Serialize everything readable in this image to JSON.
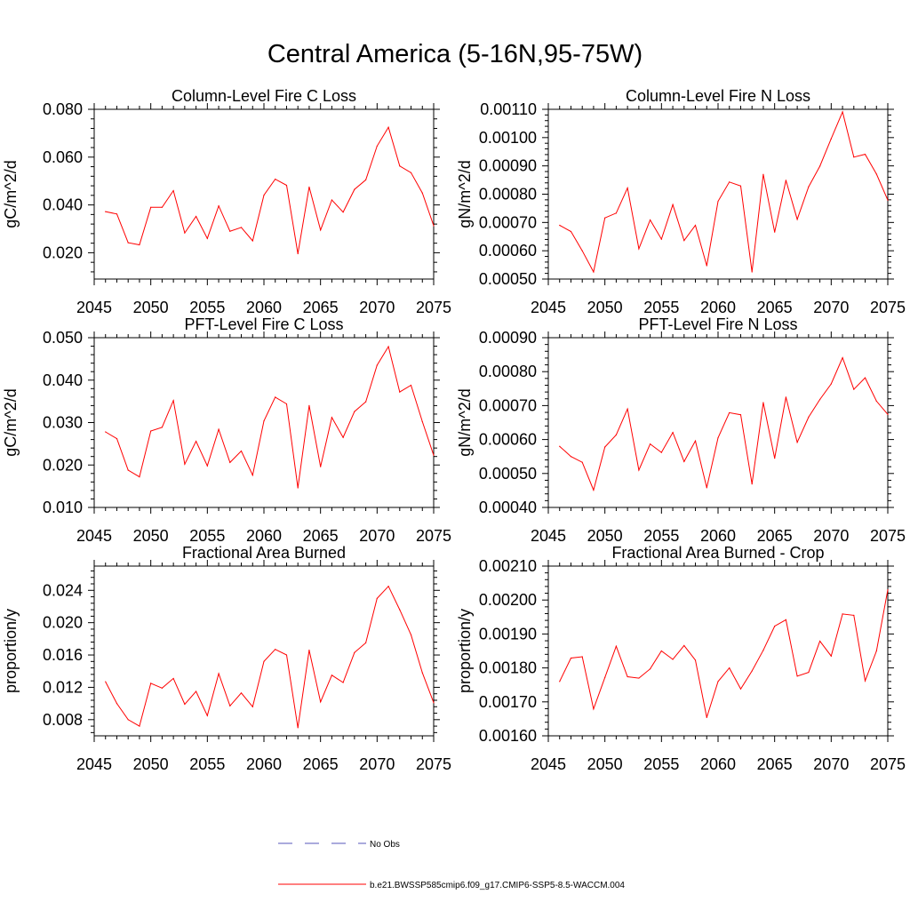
{
  "figure_title": "Central America (5-16N,95-75W)",
  "legend": {
    "obs_label": "No Obs",
    "model_label": "b.e21.BWSSP585cmip6.f09_g17.CMIP6-SSP5-8.5-WACCM.004",
    "obs_color": "#5555bb",
    "model_color": "#ff0000"
  },
  "chart_data": [
    {
      "type": "line",
      "title": "Column-Level Fire C Loss",
      "xlabel": "",
      "ylabel": "gC/m^2/d",
      "xlim": [
        2045,
        2075
      ],
      "ylim": [
        0.009,
        0.08
      ],
      "yticks": [
        0.02,
        0.04,
        0.06,
        0.08
      ],
      "yticklabels": [
        "0.020",
        "0.040",
        "0.060",
        "0.080"
      ],
      "xticks": [
        2045,
        2050,
        2055,
        2060,
        2065,
        2070,
        2075
      ],
      "xticklabels": [
        "2045",
        "2050",
        "2055",
        "2060",
        "2065",
        "2070",
        "2075"
      ],
      "series": [
        {
          "name": "b.e21.BWSSP585cmip6.f09_g17.CMIP6-SSP5-8.5-WACCM.004",
          "color": "#ff0000",
          "x": [
            2046,
            2047,
            2048,
            2049,
            2050,
            2051,
            2052,
            2053,
            2054,
            2055,
            2056,
            2057,
            2058,
            2059,
            2060,
            2061,
            2062,
            2063,
            2064,
            2065,
            2066,
            2067,
            2068,
            2069,
            2070,
            2071,
            2072,
            2073,
            2074,
            2075
          ],
          "values": [
            0.0372,
            0.0362,
            0.0242,
            0.0233,
            0.039,
            0.039,
            0.046,
            0.0283,
            0.0352,
            0.026,
            0.0396,
            0.029,
            0.0306,
            0.025,
            0.0441,
            0.0508,
            0.0482,
            0.0196,
            0.0475,
            0.0295,
            0.0421,
            0.037,
            0.0465,
            0.0505,
            0.0646,
            0.0725,
            0.0563,
            0.0535,
            0.045,
            0.0313
          ]
        }
      ]
    },
    {
      "type": "line",
      "title": "Column-Level Fire N Loss",
      "xlabel": "",
      "ylabel": "gN/m^2/d",
      "xlim": [
        2045,
        2075
      ],
      "ylim": [
        0.0005,
        0.0011
      ],
      "yticks": [
        0.0005,
        0.0006,
        0.0007,
        0.0008,
        0.0009,
        0.001,
        0.0011
      ],
      "yticklabels": [
        "0.00050",
        "0.00060",
        "0.00070",
        "0.00080",
        "0.00090",
        "0.00100",
        "0.00110"
      ],
      "xticks": [
        2045,
        2050,
        2055,
        2060,
        2065,
        2070,
        2075
      ],
      "xticklabels": [
        "2045",
        "2050",
        "2055",
        "2060",
        "2065",
        "2070",
        "2075"
      ],
      "series": [
        {
          "name": "b.e21.BWSSP585cmip6.f09_g17.CMIP6-SSP5-8.5-WACCM.004",
          "color": "#ff0000",
          "x": [
            2046,
            2047,
            2048,
            2049,
            2050,
            2051,
            2052,
            2053,
            2054,
            2055,
            2056,
            2057,
            2058,
            2059,
            2060,
            2061,
            2062,
            2063,
            2064,
            2065,
            2066,
            2067,
            2068,
            2069,
            2070,
            2071,
            2072,
            2073,
            2074,
            2075
          ],
          "values": [
            0.00069,
            0.000668,
            0.0006,
            0.000525,
            0.000716,
            0.000733,
            0.000822,
            0.000607,
            0.000709,
            0.000641,
            0.000763,
            0.000636,
            0.00069,
            0.000547,
            0.000775,
            0.000843,
            0.000829,
            0.000525,
            0.00087,
            0.000666,
            0.000849,
            0.000711,
            0.000826,
            0.000899,
            0.000996,
            0.001091,
            0.000931,
            0.000941,
            0.000871,
            0.000779
          ]
        }
      ]
    },
    {
      "type": "line",
      "title": "PFT-Level Fire C Loss",
      "xlabel": "",
      "ylabel": "gC/m^2/d",
      "xlim": [
        2045,
        2075
      ],
      "ylim": [
        0.01,
        0.05
      ],
      "yticks": [
        0.01,
        0.02,
        0.03,
        0.04,
        0.05
      ],
      "yticklabels": [
        "0.010",
        "0.020",
        "0.030",
        "0.040",
        "0.050"
      ],
      "xticks": [
        2045,
        2050,
        2055,
        2060,
        2065,
        2070,
        2075
      ],
      "xticklabels": [
        "2045",
        "2050",
        "2055",
        "2060",
        "2065",
        "2070",
        "2075"
      ],
      "series": [
        {
          "name": "b.e21.BWSSP585cmip6.f09_g17.CMIP6-SSP5-8.5-WACCM.004",
          "color": "#ff0000",
          "x": [
            2046,
            2047,
            2048,
            2049,
            2050,
            2051,
            2052,
            2053,
            2054,
            2055,
            2056,
            2057,
            2058,
            2059,
            2060,
            2061,
            2062,
            2063,
            2064,
            2065,
            2066,
            2067,
            2068,
            2069,
            2070,
            2071,
            2072,
            2073,
            2074,
            2075
          ],
          "values": [
            0.0278,
            0.0262,
            0.0188,
            0.0172,
            0.028,
            0.0289,
            0.0352,
            0.0202,
            0.0256,
            0.0198,
            0.0284,
            0.0206,
            0.0233,
            0.0176,
            0.0304,
            0.036,
            0.0344,
            0.0146,
            0.034,
            0.0196,
            0.0312,
            0.0265,
            0.0326,
            0.0349,
            0.0435,
            0.0479,
            0.0372,
            0.0388,
            0.0302,
            0.0223
          ]
        }
      ]
    },
    {
      "type": "line",
      "title": "PFT-Level Fire N Loss",
      "xlabel": "",
      "ylabel": "gN/m^2/d",
      "xlim": [
        2045,
        2075
      ],
      "ylim": [
        0.0004,
        0.0009
      ],
      "yticks": [
        0.0004,
        0.0005,
        0.0006,
        0.0007,
        0.0008,
        0.0009
      ],
      "yticklabels": [
        "0.00040",
        "0.00050",
        "0.00060",
        "0.00070",
        "0.00080",
        "0.00090"
      ],
      "xticks": [
        2045,
        2050,
        2055,
        2060,
        2065,
        2070,
        2075
      ],
      "xticklabels": [
        "2045",
        "2050",
        "2055",
        "2060",
        "2065",
        "2070",
        "2075"
      ],
      "series": [
        {
          "name": "b.e21.BWSSP585cmip6.f09_g17.CMIP6-SSP5-8.5-WACCM.004",
          "color": "#ff0000",
          "x": [
            2046,
            2047,
            2048,
            2049,
            2050,
            2051,
            2052,
            2053,
            2054,
            2055,
            2056,
            2057,
            2058,
            2059,
            2060,
            2061,
            2062,
            2063,
            2064,
            2065,
            2066,
            2067,
            2068,
            2069,
            2070,
            2071,
            2072,
            2073,
            2074,
            2075
          ],
          "values": [
            0.00058,
            0.00055,
            0.000533,
            0.000451,
            0.000578,
            0.000614,
            0.00069,
            0.00051,
            0.000587,
            0.000562,
            0.000621,
            0.000535,
            0.000596,
            0.000458,
            0.000605,
            0.000679,
            0.000673,
            0.000469,
            0.000709,
            0.000545,
            0.000725,
            0.000592,
            0.000666,
            0.000718,
            0.000764,
            0.000841,
            0.000748,
            0.000782,
            0.000713,
            0.000674
          ]
        }
      ]
    },
    {
      "type": "line",
      "title": "Fractional Area Burned",
      "xlabel": "",
      "ylabel": "proportion/y",
      "xlim": [
        2045,
        2075
      ],
      "ylim": [
        0.006,
        0.027
      ],
      "yticks": [
        0.008,
        0.012,
        0.016,
        0.02,
        0.024
      ],
      "yticklabels": [
        "0.008",
        "0.012",
        "0.016",
        "0.020",
        "0.024"
      ],
      "xticks": [
        2045,
        2050,
        2055,
        2060,
        2065,
        2070,
        2075
      ],
      "xticklabels": [
        "2045",
        "2050",
        "2055",
        "2060",
        "2065",
        "2070",
        "2075"
      ],
      "series": [
        {
          "name": "b.e21.BWSSP585cmip6.f09_g17.CMIP6-SSP5-8.5-WACCM.004",
          "color": "#ff0000",
          "x": [
            2046,
            2047,
            2048,
            2049,
            2050,
            2051,
            2052,
            2053,
            2054,
            2055,
            2056,
            2057,
            2058,
            2059,
            2060,
            2061,
            2062,
            2063,
            2064,
            2065,
            2066,
            2067,
            2068,
            2069,
            2070,
            2071,
            2072,
            2073,
            2074,
            2075
          ],
          "values": [
            0.0127,
            0.01,
            0.008,
            0.0072,
            0.0125,
            0.0119,
            0.0131,
            0.0099,
            0.0115,
            0.0085,
            0.0137,
            0.0097,
            0.0113,
            0.0096,
            0.0152,
            0.0167,
            0.016,
            0.007,
            0.0166,
            0.0102,
            0.0135,
            0.0126,
            0.0163,
            0.0175,
            0.023,
            0.0245,
            0.0216,
            0.0185,
            0.0138,
            0.0101
          ]
        }
      ]
    },
    {
      "type": "line",
      "title": "Fractional Area Burned - Crop",
      "xlabel": "",
      "ylabel": "proportion/y",
      "xlim": [
        2045,
        2075
      ],
      "ylim": [
        0.0016,
        0.0021
      ],
      "yticks": [
        0.0016,
        0.0017,
        0.0018,
        0.0019,
        0.002,
        0.0021
      ],
      "yticklabels": [
        "0.00160",
        "0.00170",
        "0.00180",
        "0.00190",
        "0.00200",
        "0.00210"
      ],
      "xticks": [
        2045,
        2050,
        2055,
        2060,
        2065,
        2070,
        2075
      ],
      "xticklabels": [
        "2045",
        "2050",
        "2055",
        "2060",
        "2065",
        "2070",
        "2075"
      ],
      "series": [
        {
          "name": "b.e21.BWSSP585cmip6.f09_g17.CMIP6-SSP5-8.5-WACCM.004",
          "color": "#ff0000",
          "x": [
            2046,
            2047,
            2048,
            2049,
            2050,
            2051,
            2052,
            2053,
            2054,
            2055,
            2056,
            2057,
            2058,
            2059,
            2060,
            2061,
            2062,
            2063,
            2064,
            2065,
            2066,
            2067,
            2068,
            2069,
            2070,
            2071,
            2072,
            2073,
            2074,
            2075
          ],
          "values": [
            0.00176,
            0.001829,
            0.001833,
            0.001679,
            0.001772,
            0.001864,
            0.001774,
            0.00177,
            0.001797,
            0.00185,
            0.001825,
            0.001866,
            0.001823,
            0.001654,
            0.00176,
            0.0018,
            0.001738,
            0.001791,
            0.001852,
            0.001923,
            0.001942,
            0.001776,
            0.001787,
            0.001879,
            0.001835,
            0.001959,
            0.001955,
            0.001762,
            0.00185,
            0.00203
          ]
        }
      ]
    }
  ]
}
